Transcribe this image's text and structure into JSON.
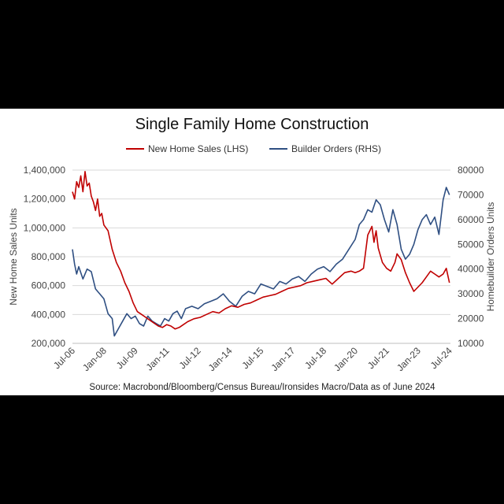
{
  "chart_data": {
    "type": "line",
    "title": "Single Family Home Construction",
    "source": "Source: Macrobond/Bloomberg/Census Bureau/Ironsides Macro/Data as of June 2024",
    "ylabel_left": "New Home Sales Units",
    "ylabel_right": "Homebuilder Orders Units",
    "ylim_left": [
      200000,
      1400000
    ],
    "ylim_right": [
      10000,
      80000
    ],
    "yticks_left": [
      "200,000",
      "400,000",
      "600,000",
      "800,000",
      "1,000,000",
      "1,200,000",
      "1,400,000"
    ],
    "yticks_right": [
      "10000",
      "20000",
      "30000",
      "40000",
      "50000",
      "60000",
      "70000",
      "80000"
    ],
    "xlim": [
      2006.5,
      2024.55
    ],
    "xtick_labels": [
      "Jul-06",
      "Jan-08",
      "Jul-09",
      "Jan-11",
      "Jul-12",
      "Jan-14",
      "Jul-15",
      "Jan-17",
      "Jul-18",
      "Jan-20",
      "Jul-21",
      "Jan-23",
      "Jul-24"
    ],
    "xtick_values": [
      2006.5,
      2008.0,
      2009.5,
      2011.0,
      2012.5,
      2014.0,
      2015.5,
      2017.0,
      2018.5,
      2020.0,
      2021.5,
      2023.0,
      2024.5
    ],
    "series": [
      {
        "name": "New Home Sales (LHS)",
        "axis": "left",
        "color": "#c00000",
        "x": [
          2006.5,
          2006.6,
          2006.7,
          2006.8,
          2006.9,
          2007.0,
          2007.1,
          2007.2,
          2007.3,
          2007.4,
          2007.5,
          2007.6,
          2007.7,
          2007.8,
          2007.9,
          2008.0,
          2008.2,
          2008.4,
          2008.6,
          2008.8,
          2009.0,
          2009.2,
          2009.4,
          2009.6,
          2009.8,
          2010.0,
          2010.2,
          2010.4,
          2010.6,
          2010.8,
          2011.0,
          2011.2,
          2011.4,
          2011.6,
          2011.8,
          2012.0,
          2012.3,
          2012.6,
          2012.9,
          2013.2,
          2013.5,
          2013.8,
          2014.1,
          2014.4,
          2014.7,
          2015.0,
          2015.3,
          2015.6,
          2015.9,
          2016.2,
          2016.5,
          2016.8,
          2017.1,
          2017.4,
          2017.7,
          2018.0,
          2018.3,
          2018.6,
          2018.9,
          2019.2,
          2019.5,
          2019.8,
          2020.0,
          2020.2,
          2020.4,
          2020.6,
          2020.8,
          2020.9,
          2021.0,
          2021.1,
          2021.3,
          2021.5,
          2021.7,
          2021.9,
          2022.0,
          2022.2,
          2022.4,
          2022.6,
          2022.8,
          2023.0,
          2023.2,
          2023.4,
          2023.6,
          2023.8,
          2024.0,
          2024.2,
          2024.35,
          2024.5
        ],
        "values": [
          1250000,
          1200000,
          1320000,
          1280000,
          1360000,
          1250000,
          1390000,
          1290000,
          1310000,
          1220000,
          1180000,
          1120000,
          1200000,
          1080000,
          1100000,
          1020000,
          980000,
          850000,
          760000,
          700000,
          620000,
          560000,
          480000,
          420000,
          400000,
          380000,
          360000,
          340000,
          320000,
          310000,
          330000,
          320000,
          300000,
          310000,
          330000,
          350000,
          370000,
          380000,
          400000,
          420000,
          410000,
          440000,
          460000,
          450000,
          470000,
          480000,
          500000,
          520000,
          530000,
          540000,
          560000,
          580000,
          590000,
          600000,
          620000,
          630000,
          640000,
          650000,
          610000,
          650000,
          690000,
          700000,
          690000,
          700000,
          720000,
          950000,
          1010000,
          900000,
          980000,
          860000,
          760000,
          720000,
          700000,
          760000,
          820000,
          780000,
          690000,
          620000,
          560000,
          590000,
          620000,
          660000,
          700000,
          680000,
          660000,
          680000,
          720000,
          620000
        ],
        "values_count": 88
      },
      {
        "name": "Builder Orders (RHS)",
        "axis": "right",
        "color": "#2f4f82",
        "x": [
          2006.5,
          2006.6,
          2006.7,
          2006.8,
          2007.0,
          2007.2,
          2007.4,
          2007.6,
          2007.8,
          2008.0,
          2008.2,
          2008.4,
          2008.5,
          2008.7,
          2008.9,
          2009.1,
          2009.3,
          2009.5,
          2009.7,
          2009.9,
          2010.1,
          2010.3,
          2010.5,
          2010.7,
          2010.9,
          2011.1,
          2011.3,
          2011.5,
          2011.7,
          2011.9,
          2012.2,
          2012.5,
          2012.8,
          2013.1,
          2013.4,
          2013.7,
          2014.0,
          2014.3,
          2014.6,
          2014.9,
          2015.2,
          2015.5,
          2015.8,
          2016.1,
          2016.4,
          2016.7,
          2017.0,
          2017.3,
          2017.6,
          2017.9,
          2018.2,
          2018.5,
          2018.8,
          2019.1,
          2019.4,
          2019.7,
          2020.0,
          2020.2,
          2020.4,
          2020.6,
          2020.8,
          2021.0,
          2021.2,
          2021.4,
          2021.6,
          2021.8,
          2022.0,
          2022.2,
          2022.4,
          2022.6,
          2022.8,
          2023.0,
          2023.2,
          2023.4,
          2023.6,
          2023.8,
          2024.0,
          2024.2,
          2024.35,
          2024.5
        ],
        "values": [
          48000,
          42000,
          38000,
          41000,
          36000,
          40000,
          39000,
          32000,
          30000,
          28000,
          22000,
          20000,
          13000,
          16000,
          19000,
          22000,
          20000,
          21000,
          18000,
          17000,
          21000,
          19000,
          18000,
          17000,
          20000,
          19000,
          22000,
          23000,
          20000,
          24000,
          25000,
          24000,
          26000,
          27000,
          28000,
          30000,
          27000,
          25000,
          29000,
          31000,
          30000,
          34000,
          33000,
          32000,
          35000,
          34000,
          36000,
          37000,
          35000,
          38000,
          40000,
          41000,
          39000,
          42000,
          44000,
          48000,
          52000,
          58000,
          60000,
          64000,
          63000,
          68000,
          66000,
          60000,
          55000,
          64000,
          58000,
          48000,
          44000,
          46000,
          50000,
          56000,
          60000,
          62000,
          58000,
          61000,
          54000,
          68000,
          73000,
          70000
        ],
        "values_count": 80
      }
    ],
    "legend": [
      "New Home Sales (LHS)",
      "Builder Orders (RHS)"
    ],
    "grid": true
  }
}
